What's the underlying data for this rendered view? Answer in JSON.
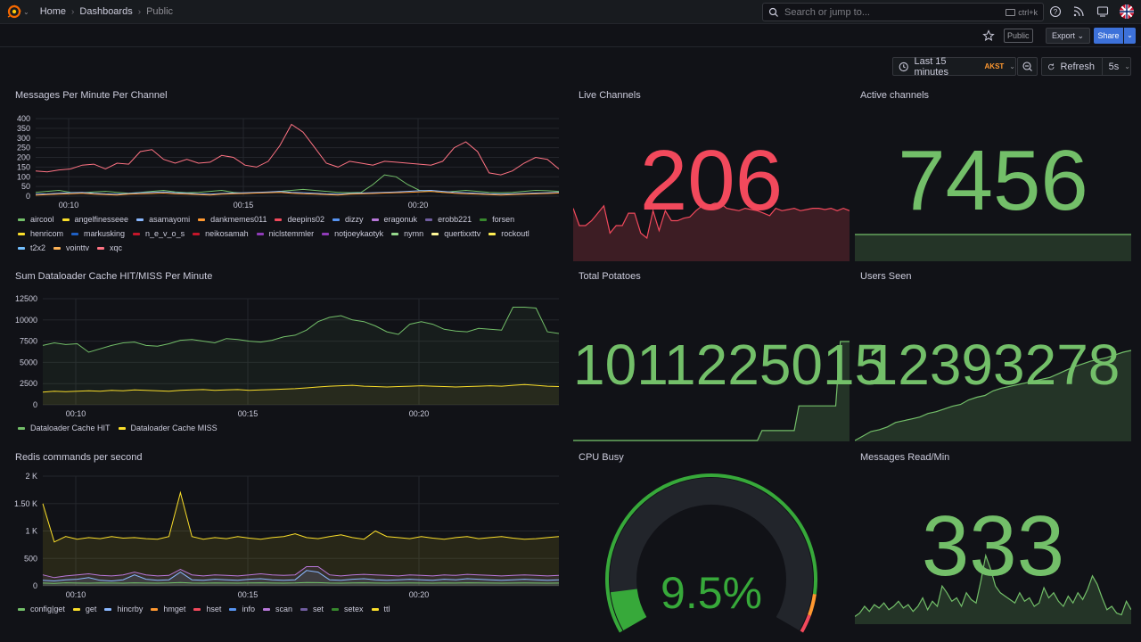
{
  "topbar": {
    "breadcrumbs": [
      "Home",
      "Dashboards",
      "Public"
    ],
    "search_placeholder": "Search or jump to...",
    "search_shortcut": "ctrl+k"
  },
  "subbar": {
    "public_badge": "Public",
    "export_label": "Export",
    "share_label": "Share"
  },
  "timepicker": {
    "range": "Last 15 minutes",
    "timezone": "AKST",
    "refresh_label": "Refresh",
    "refresh_interval": "5s"
  },
  "panels": {
    "messages": {
      "title": "Messages Per Minute Per Channel",
      "legend": [
        {
          "name": "aircool",
          "color": "#73bf69"
        },
        {
          "name": "angelfinesseee",
          "color": "#fade2a"
        },
        {
          "name": "asamayomi",
          "color": "#8ab8ff"
        },
        {
          "name": "dankmemes011",
          "color": "#ff9830"
        },
        {
          "name": "deepins02",
          "color": "#f2495c"
        },
        {
          "name": "dizzy",
          "color": "#5794f2"
        },
        {
          "name": "eragonuk",
          "color": "#b877d9"
        },
        {
          "name": "erobb221",
          "color": "#705da0"
        },
        {
          "name": "forsen",
          "color": "#37872d"
        },
        {
          "name": "henricom",
          "color": "#fade2a"
        },
        {
          "name": "markusking",
          "color": "#1f60c4"
        },
        {
          "name": "n_e_v_o_s",
          "color": "#c4162a"
        },
        {
          "name": "neikosamah",
          "color": "#c4162a"
        },
        {
          "name": "niclstemmler",
          "color": "#8f3bb8"
        },
        {
          "name": "notjoeykaotyk",
          "color": "#8f3bb8"
        },
        {
          "name": "nymn",
          "color": "#96d98d"
        },
        {
          "name": "quertixxttv",
          "color": "#fff899"
        },
        {
          "name": "rockoutl",
          "color": "#ffee52"
        },
        {
          "name": "t2x2",
          "color": "#73bfff"
        },
        {
          "name": "vointtv",
          "color": "#ffb357"
        },
        {
          "name": "xqc",
          "color": "#ff7383"
        }
      ]
    },
    "live_channels": {
      "title": "Live Channels",
      "value": "206"
    },
    "active_channels": {
      "title": "Active channels",
      "value": "7456"
    },
    "cache": {
      "title": "Sum Dataloader Cache HIT/MISS Per Minute",
      "legend": [
        {
          "name": "Dataloader Cache HIT",
          "color": "#73bf69"
        },
        {
          "name": "Dataloader Cache MISS",
          "color": "#fade2a"
        }
      ]
    },
    "total_potatoes": {
      "title": "Total Potatoes",
      "value": "1011225015"
    },
    "users_seen": {
      "title": "Users Seen",
      "value": "12393278"
    },
    "redis": {
      "title": "Redis commands per second",
      "legend": [
        {
          "name": "config|get",
          "color": "#73bf69"
        },
        {
          "name": "get",
          "color": "#fade2a"
        },
        {
          "name": "hincrby",
          "color": "#8ab8ff"
        },
        {
          "name": "hmget",
          "color": "#ff9830"
        },
        {
          "name": "hset",
          "color": "#f2495c"
        },
        {
          "name": "info",
          "color": "#5794f2"
        },
        {
          "name": "scan",
          "color": "#b877d9"
        },
        {
          "name": "set",
          "color": "#705da0"
        },
        {
          "name": "setex",
          "color": "#37872d"
        },
        {
          "name": "ttl",
          "color": "#fade2a"
        }
      ]
    },
    "cpu_busy": {
      "title": "CPU Busy",
      "value": "9.5%",
      "percent": 9.5
    },
    "messages_read": {
      "title": "Messages Read/Min",
      "value": "333"
    }
  },
  "chart_data": [
    {
      "type": "line",
      "title": "Messages Per Minute Per Channel",
      "yticks": [
        "400",
        "350",
        "300",
        "250",
        "200",
        "150",
        "100",
        "50",
        "0"
      ],
      "xticks": [
        "00:10",
        "00:15",
        "00:20"
      ],
      "ylim": [
        0,
        400
      ],
      "series": [
        {
          "name": "xqc",
          "color": "#ff7383",
          "values": [
            130,
            125,
            135,
            140,
            160,
            165,
            140,
            170,
            165,
            230,
            240,
            190,
            170,
            190,
            170,
            175,
            210,
            200,
            160,
            150,
            180,
            260,
            370,
            330,
            250,
            170,
            150,
            180,
            170,
            160,
            180,
            175,
            170,
            165,
            160,
            180,
            250,
            280,
            230,
            120,
            110,
            130,
            170,
            200,
            190,
            140
          ]
        },
        {
          "name": "forsen",
          "color": "#73bf69",
          "values": [
            20,
            25,
            30,
            20,
            18,
            22,
            25,
            20,
            15,
            20,
            25,
            30,
            22,
            18,
            20,
            25,
            30,
            20,
            15,
            18,
            20,
            25,
            30,
            35,
            30,
            25,
            20,
            18,
            20,
            60,
            110,
            100,
            60,
            30,
            25,
            20,
            25,
            30,
            25,
            20,
            18,
            20,
            25,
            30,
            28,
            25
          ]
        },
        {
          "name": "asamayomi",
          "color": "#8ab8ff",
          "values": [
            10,
            12,
            15,
            18,
            20,
            15,
            12,
            10,
            14,
            18,
            20,
            22,
            18,
            15,
            12,
            10,
            14,
            16,
            18,
            20,
            22,
            25,
            20,
            18,
            15,
            12,
            10,
            14,
            16,
            18,
            20,
            22,
            25,
            28,
            30,
            25,
            20,
            18,
            15,
            12,
            10,
            12,
            14,
            16,
            18,
            20
          ]
        },
        {
          "name": "dankmemes011",
          "color": "#ff9830",
          "values": [
            5,
            8,
            10,
            12,
            15,
            10,
            8,
            6,
            10,
            12,
            14,
            16,
            12,
            10,
            8,
            6,
            10,
            12,
            14,
            16,
            18,
            20,
            15,
            12,
            10,
            8,
            6,
            10,
            12,
            14,
            16,
            18,
            20,
            22,
            25,
            20,
            15,
            12,
            10,
            8,
            6,
            8,
            10,
            12,
            14,
            16
          ]
        }
      ]
    },
    {
      "type": "area",
      "title": "Sum Dataloader Cache HIT/MISS Per Minute",
      "yticks": [
        "12500",
        "10000",
        "7500",
        "5000",
        "2500",
        "0"
      ],
      "xticks": [
        "00:10",
        "00:15",
        "00:20"
      ],
      "ylim": [
        0,
        13000
      ],
      "series": [
        {
          "name": "Dataloader Cache HIT",
          "color": "#73bf69",
          "values": [
            7000,
            7300,
            7100,
            7200,
            6200,
            6600,
            7000,
            7300,
            7400,
            7000,
            6900,
            7200,
            7600,
            7700,
            7500,
            7300,
            7800,
            7700,
            7500,
            7400,
            7600,
            8000,
            8200,
            8800,
            9800,
            10300,
            10500,
            10000,
            9800,
            9300,
            8600,
            8300,
            9500,
            9800,
            9500,
            8900,
            8700,
            8600,
            9000,
            8900,
            8800,
            11500,
            11500,
            11400,
            8600,
            8400
          ]
        },
        {
          "name": "Dataloader Cache MISS",
          "color": "#fade2a",
          "values": [
            1500,
            1600,
            1550,
            1600,
            1650,
            1600,
            1700,
            1650,
            1750,
            1700,
            1650,
            1600,
            1700,
            1750,
            1800,
            1700,
            1750,
            1800,
            1700,
            1750,
            1800,
            1850,
            1900,
            2000,
            2100,
            2200,
            2250,
            2300,
            2200,
            2150,
            2100,
            2150,
            2200,
            2250,
            2200,
            2150,
            2100,
            2150,
            2200,
            2250,
            2200,
            2300,
            2400,
            2300,
            2200,
            2150
          ]
        }
      ]
    },
    {
      "type": "area",
      "title": "Redis commands per second",
      "yticks": [
        "2 K",
        "1.50 K",
        "1 K",
        "500",
        "0"
      ],
      "xticks": [
        "00:10",
        "00:15",
        "00:20"
      ],
      "ylim": [
        0,
        2000
      ],
      "series": [
        {
          "name": "get",
          "color": "#fade2a",
          "values": [
            1500,
            800,
            900,
            850,
            880,
            860,
            900,
            870,
            880,
            860,
            850,
            900,
            1700,
            900,
            850,
            880,
            860,
            900,
            870,
            850,
            880,
            900,
            950,
            880,
            860,
            900,
            930,
            880,
            850,
            1000,
            900,
            880,
            860,
            900,
            870,
            850,
            880,
            900,
            860,
            880,
            900,
            870,
            850,
            860,
            880,
            900
          ]
        },
        {
          "name": "scan",
          "color": "#b877d9",
          "values": [
            200,
            150,
            180,
            200,
            220,
            190,
            180,
            200,
            250,
            200,
            180,
            190,
            300,
            200,
            180,
            200,
            190,
            180,
            200,
            220,
            200,
            190,
            200,
            350,
            350,
            200,
            180,
            200,
            210,
            200,
            190,
            180,
            200,
            190,
            180,
            200,
            190,
            210,
            200,
            190,
            180,
            190,
            200,
            190,
            180,
            190
          ]
        },
        {
          "name": "hincrby",
          "color": "#8ab8ff",
          "values": [
            100,
            90,
            110,
            120,
            150,
            100,
            90,
            110,
            200,
            120,
            100,
            110,
            250,
            110,
            100,
            120,
            110,
            100,
            120,
            130,
            110,
            100,
            110,
            280,
            250,
            110,
            100,
            120,
            130,
            110,
            100,
            110,
            120,
            110,
            100,
            120,
            110,
            130,
            120,
            110,
            100,
            110,
            120,
            110,
            100,
            110
          ]
        },
        {
          "name": "config|get",
          "color": "#73bf69",
          "values": [
            50,
            45,
            55,
            50,
            48,
            52,
            50,
            48,
            55,
            50,
            48,
            52,
            60,
            50,
            48,
            52,
            50,
            48,
            52,
            55,
            50,
            48,
            52,
            60,
            58,
            50,
            48,
            52,
            55,
            50,
            48,
            50,
            52,
            50,
            48,
            52,
            50,
            55,
            52,
            50,
            48,
            50,
            52,
            50,
            48,
            50
          ]
        }
      ]
    },
    {
      "type": "area",
      "title": "Live Channels",
      "values": [
        210,
        140,
        140,
        160,
        190,
        220,
        110,
        140,
        140,
        190,
        190,
        110,
        90,
        200,
        120,
        200,
        160,
        160,
        170,
        175,
        200,
        220,
        220,
        230,
        230,
        210,
        205,
        200,
        210,
        205,
        200,
        190,
        180,
        210,
        200,
        205,
        210,
        200,
        205,
        210,
        210,
        205,
        210,
        200,
        210,
        200
      ]
    },
    {
      "type": "area",
      "title": "Active channels",
      "values": [
        7456,
        7456,
        7456,
        7456,
        7456,
        7456,
        7456,
        7456,
        7456,
        7456
      ]
    },
    {
      "type": "area",
      "title": "Total Potatoes",
      "values": [
        0,
        0,
        0,
        0,
        0,
        0,
        0,
        0,
        0,
        0,
        0,
        0,
        0,
        0,
        0,
        0,
        0,
        0,
        0,
        0,
        0,
        0,
        0,
        0,
        0,
        0,
        0,
        0,
        0,
        0,
        0,
        0,
        0,
        0,
        0,
        0,
        0,
        0,
        0,
        0,
        0,
        10,
        10,
        10,
        10,
        10,
        10,
        10,
        10,
        35,
        35,
        35,
        35,
        35,
        35,
        35,
        35,
        35,
        100,
        100,
        100
      ]
    },
    {
      "type": "area",
      "title": "Users Seen",
      "values": [
        0,
        5,
        10,
        12,
        15,
        20,
        22,
        24,
        26,
        30,
        32,
        35,
        38,
        40,
        45,
        48,
        50,
        55,
        58,
        60,
        62,
        64,
        66,
        68,
        70,
        74,
        78,
        82,
        85,
        88,
        90,
        92,
        95,
        98,
        100
      ]
    },
    {
      "type": "area",
      "title": "Messages Read/Min",
      "values": [
        240,
        260,
        300,
        270,
        310,
        290,
        320,
        280,
        300,
        330,
        290,
        310,
        270,
        300,
        350,
        280,
        330,
        300,
        420,
        380,
        330,
        350,
        300,
        380,
        340,
        320,
        450,
        600,
        520,
        420,
        380,
        360,
        340,
        320,
        380,
        330,
        350,
        300,
        320,
        410,
        350,
        380,
        330,
        300,
        360,
        320,
        380,
        340,
        400,
        480,
        430,
        350,
        280,
        300,
        260,
        250,
        330,
        280
      ]
    }
  ]
}
